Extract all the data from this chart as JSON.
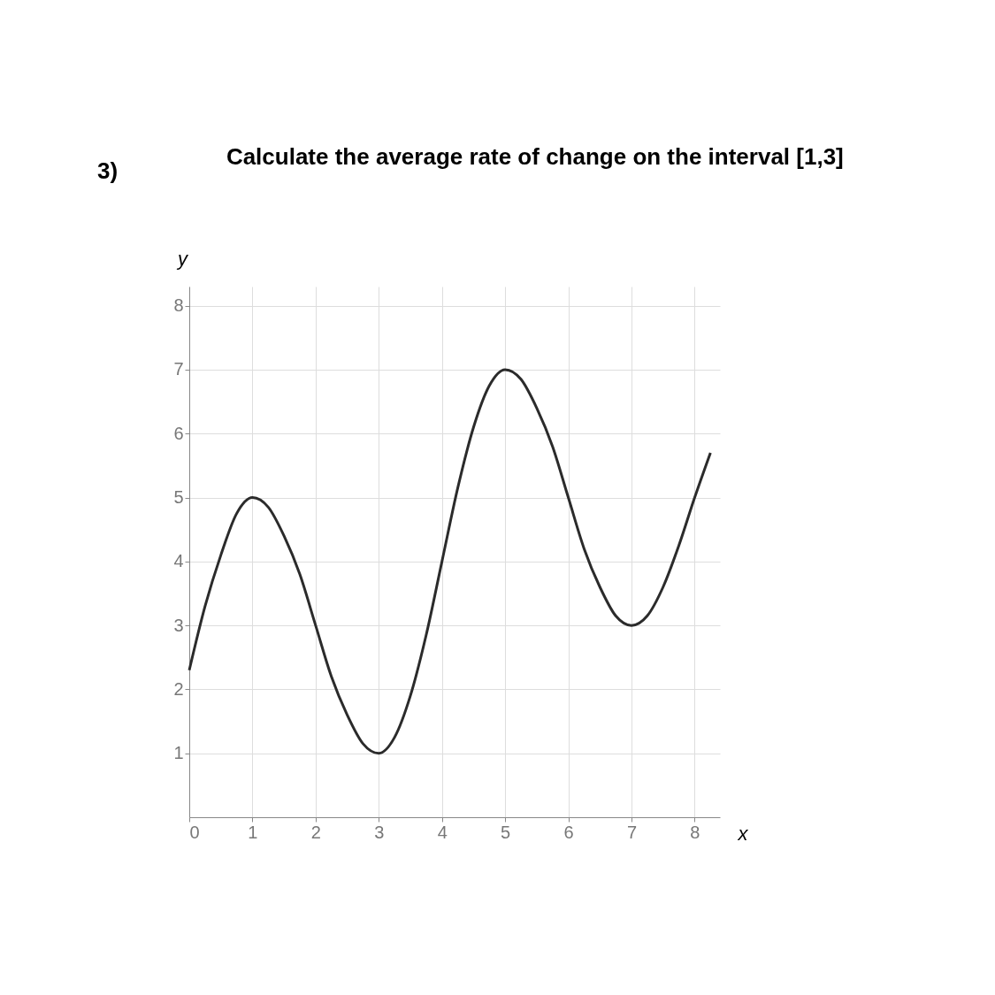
{
  "chart_data": {
    "type": "line",
    "title": "Calculate the average rate of change on the interval [1,3]",
    "annotations": [
      "3)"
    ],
    "xlabel": "x",
    "ylabel": "y",
    "x": [
      0,
      0.25,
      0.5,
      0.75,
      1,
      1.25,
      1.5,
      1.75,
      2,
      2.25,
      2.5,
      2.75,
      3,
      3.25,
      3.5,
      3.75,
      4,
      4.25,
      4.5,
      4.75,
      5,
      5.25,
      5.5,
      5.75,
      6,
      6.25,
      6.5,
      6.75,
      7,
      7.25,
      7.5,
      7.75,
      8,
      8.25
    ],
    "series": [
      {
        "color": "#2b2b2b",
        "values": [
          2.3,
          3.3,
          4.1,
          4.75,
          5,
          4.85,
          4.4,
          3.8,
          3,
          2.2,
          1.6,
          1.15,
          1,
          1.25,
          1.9,
          2.85,
          4,
          5.15,
          6.1,
          6.75,
          7,
          6.85,
          6.4,
          5.8,
          5,
          4.2,
          3.6,
          3.15,
          3,
          3.15,
          3.6,
          4.25,
          5,
          5.7
        ]
      }
    ],
    "xlim": [
      0,
      8.4
    ],
    "ylim": [
      0,
      8.3
    ],
    "xticks": [
      0,
      1,
      2,
      3,
      4,
      5,
      6,
      7,
      8
    ],
    "yticks": [
      1,
      2,
      3,
      4,
      5,
      6,
      7,
      8
    ],
    "grid": true,
    "marker": "none",
    "line_style": "solid"
  }
}
